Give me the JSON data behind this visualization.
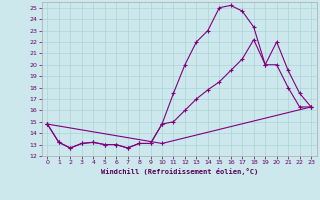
{
  "xlabel": "Windchill (Refroidissement éolien,°C)",
  "bg_color": "#cce8ec",
  "line_color": "#800080",
  "grid_color": "#aad4d8",
  "xlim": [
    -0.5,
    23.5
  ],
  "ylim": [
    12,
    25.5
  ],
  "xticks": [
    0,
    1,
    2,
    3,
    4,
    5,
    6,
    7,
    8,
    9,
    10,
    11,
    12,
    13,
    14,
    15,
    16,
    17,
    18,
    19,
    20,
    21,
    22,
    23
  ],
  "yticks": [
    12,
    13,
    14,
    15,
    16,
    17,
    18,
    19,
    20,
    21,
    22,
    23,
    24,
    25
  ],
  "line1_x": [
    0,
    1,
    2,
    3,
    4,
    5,
    6,
    7,
    8,
    9,
    10,
    11,
    12,
    13,
    14,
    15,
    16,
    17,
    18,
    19,
    20,
    21,
    22,
    23
  ],
  "line1_y": [
    14.8,
    13.2,
    12.7,
    13.1,
    13.2,
    13.0,
    13.0,
    12.7,
    13.1,
    13.1,
    14.8,
    17.5,
    20.0,
    22.0,
    23.0,
    25.0,
    25.2,
    24.7,
    23.3,
    20.0,
    22.0,
    19.5,
    17.5,
    16.3
  ],
  "line2_x": [
    0,
    1,
    2,
    3,
    4,
    5,
    6,
    7,
    8,
    9,
    10,
    11,
    12,
    13,
    14,
    15,
    16,
    17,
    18,
    19,
    20,
    21,
    22,
    23
  ],
  "line2_y": [
    14.8,
    13.2,
    12.7,
    13.1,
    13.2,
    13.0,
    13.0,
    12.7,
    13.1,
    13.1,
    14.8,
    15.0,
    16.0,
    17.0,
    17.8,
    18.5,
    19.5,
    20.5,
    22.2,
    20.0,
    20.0,
    18.0,
    16.3,
    16.3
  ],
  "line3_x": [
    0,
    10,
    23
  ],
  "line3_y": [
    14.8,
    13.1,
    16.3
  ]
}
